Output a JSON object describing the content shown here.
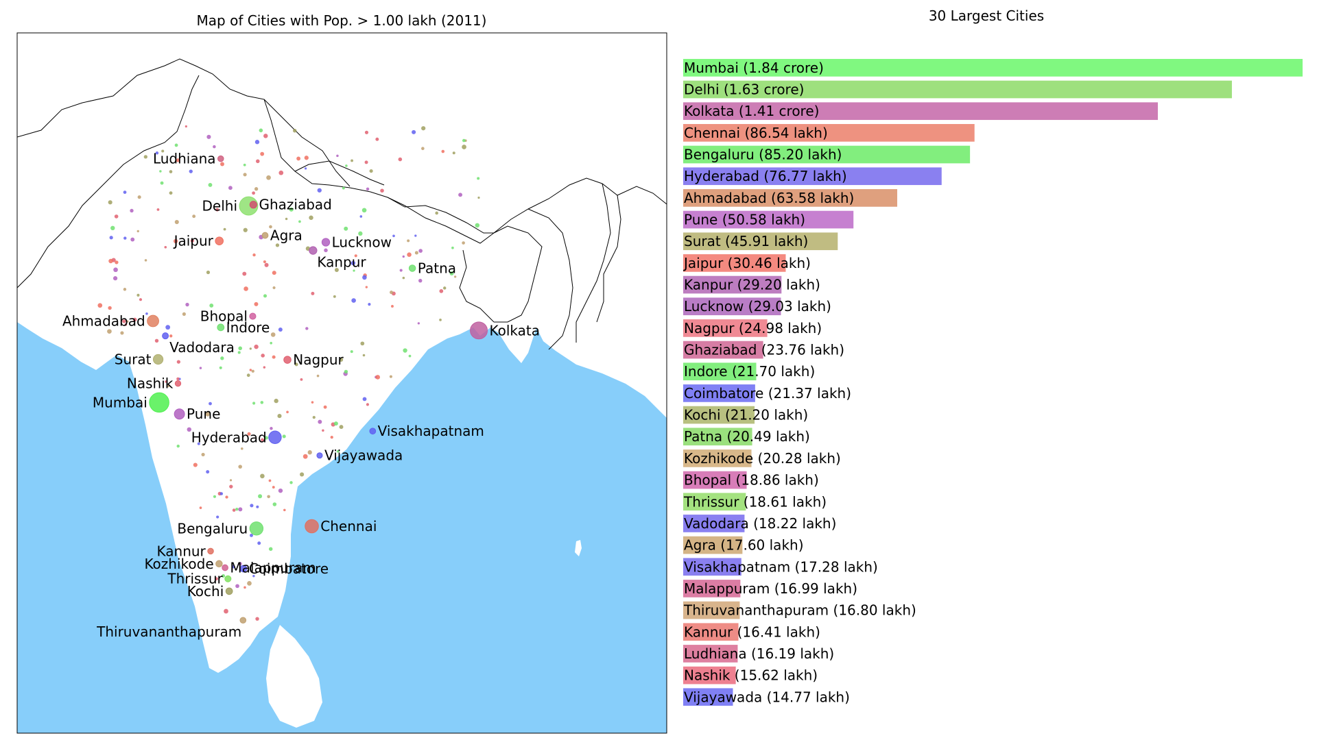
{
  "map_panel": {
    "title": "Map of Cities with Pop. > 1.00 lakh (2011)"
  },
  "bars_panel": {
    "title": "30 Largest Cities"
  },
  "colors": {
    "sea": "#87cefa",
    "land": "#ffffff",
    "border": "#000000"
  },
  "chart_data": [
    {
      "type": "scatter",
      "title": "Map of Cities with Pop. > 1.00 lakh (2011)",
      "xlabel": "",
      "ylabel": "",
      "grid": false,
      "series": [
        {
          "points": [
            {
              "label": "Mumbai",
              "lon": 72.88,
              "lat": 19.08,
              "color": "#50f050"
            },
            {
              "label": "Delhi",
              "lon": 77.21,
              "lat": 28.61,
              "color": "#8ee070"
            },
            {
              "label": "Ghaziabad",
              "lon": 77.44,
              "lat": 28.67,
              "color": "#d05070"
            },
            {
              "label": "Kolkata",
              "lon": 88.36,
              "lat": 22.57,
              "color": "#c060a0"
            },
            {
              "label": "Chennai",
              "lon": 80.27,
              "lat": 13.08,
              "color": "#e07060"
            },
            {
              "label": "Bengaluru",
              "lon": 77.59,
              "lat": 12.97,
              "color": "#70e070"
            },
            {
              "label": "Hyderabad",
              "lon": 78.49,
              "lat": 17.39,
              "color": "#6060f0"
            },
            {
              "label": "Ahmadabad",
              "lon": 72.58,
              "lat": 23.03,
              "color": "#e08060"
            },
            {
              "label": "Pune",
              "lon": 73.86,
              "lat": 18.52,
              "color": "#b060c0"
            },
            {
              "label": "Surat",
              "lon": 72.83,
              "lat": 21.17,
              "color": "#b0b070"
            },
            {
              "label": "Jaipur",
              "lon": 75.79,
              "lat": 26.91,
              "color": "#f07060"
            },
            {
              "label": "Kanpur",
              "lon": 80.33,
              "lat": 26.45,
              "color": "#b060b0"
            },
            {
              "label": "Lucknow",
              "lon": 80.95,
              "lat": 26.85,
              "color": "#b060c0"
            },
            {
              "label": "Nagpur",
              "lon": 79.09,
              "lat": 21.15,
              "color": "#e06070"
            },
            {
              "label": "Indore",
              "lon": 75.86,
              "lat": 22.72,
              "color": "#70e070"
            },
            {
              "label": "Coimbatore",
              "lon": 76.96,
              "lat": 11.02,
              "color": "#6060f0"
            },
            {
              "label": "Kochi",
              "lon": 76.27,
              "lat": 9.93,
              "color": "#a0a060"
            },
            {
              "label": "Patna",
              "lon": 85.14,
              "lat": 25.59,
              "color": "#70e070"
            },
            {
              "label": "Kozhikode",
              "lon": 75.78,
              "lat": 11.26,
              "color": "#c0a070"
            },
            {
              "label": "Bhopal",
              "lon": 77.41,
              "lat": 23.26,
              "color": "#d060a0"
            },
            {
              "label": "Thrissur",
              "lon": 76.21,
              "lat": 10.53,
              "color": "#80e060"
            },
            {
              "label": "Vadodara",
              "lon": 73.18,
              "lat": 22.31,
              "color": "#6060f0"
            },
            {
              "label": "Agra",
              "lon": 78.01,
              "lat": 27.18,
              "color": "#c0a070"
            },
            {
              "label": "Visakhapatnam",
              "lon": 83.22,
              "lat": 17.69,
              "color": "#6060f0"
            },
            {
              "label": "Malappuram",
              "lon": 76.07,
              "lat": 11.07,
              "color": "#d06090"
            },
            {
              "label": "Thiruvananthapuram",
              "lon": 76.94,
              "lat": 8.52,
              "color": "#c0a070"
            },
            {
              "label": "Kannur",
              "lon": 75.37,
              "lat": 11.87,
              "color": "#e07060"
            },
            {
              "label": "Ludhiana",
              "lon": 75.86,
              "lat": 30.9,
              "color": "#d06080"
            },
            {
              "label": "Nashik",
              "lon": 73.79,
              "lat": 20.0,
              "color": "#e06070"
            },
            {
              "label": "Vijayawada",
              "lon": 80.65,
              "lat": 16.51,
              "color": "#6060f0"
            }
          ]
        }
      ]
    },
    {
      "type": "bar",
      "orientation": "horizontal",
      "title": "30 Largest Cities",
      "xlabel": "",
      "ylabel": "",
      "grid": false,
      "unit": "lakh",
      "categories": [
        "Mumbai (1.84 crore)",
        "Delhi (1.63 crore)",
        "Kolkata (1.41 crore)",
        "Chennai (86.54 lakh)",
        "Bengaluru (85.20 lakh)",
        "Hyderabad (76.77 lakh)",
        "Ahmadabad (63.58 lakh)",
        "Pune (50.58 lakh)",
        "Surat (45.91 lakh)",
        "Jaipur (30.46 lakh)",
        "Kanpur (29.20 lakh)",
        "Lucknow (29.03 lakh)",
        "Nagpur (24.98 lakh)",
        "Ghaziabad (23.76 lakh)",
        "Indore (21.70 lakh)",
        "Coimbatore (21.37 lakh)",
        "Kochi (21.20 lakh)",
        "Patna (20.49 lakh)",
        "Kozhikode (20.28 lakh)",
        "Bhopal (18.86 lakh)",
        "Thrissur (18.61 lakh)",
        "Vadodara (18.22 lakh)",
        "Agra (17.60 lakh)",
        "Visakhapatnam (17.28 lakh)",
        "Malappuram (16.99 lakh)",
        "Thiruvananthapuram (16.80 lakh)",
        "Kannur (16.41 lakh)",
        "Ludhiana (16.19 lakh)",
        "Nashik (15.62 lakh)",
        "Vijayawada (14.77 lakh)"
      ],
      "values": [
        184.0,
        163.0,
        141.0,
        86.54,
        85.2,
        76.77,
        63.58,
        50.58,
        45.91,
        30.46,
        29.2,
        29.03,
        24.98,
        23.76,
        21.7,
        21.37,
        21.2,
        20.49,
        20.28,
        18.86,
        18.61,
        18.22,
        17.6,
        17.28,
        16.99,
        16.8,
        16.41,
        16.19,
        15.62,
        14.77
      ],
      "colors": [
        "#80f880",
        "#9ee07e",
        "#cd7db5",
        "#ee9280",
        "#82ee7e",
        "#8a80f0",
        "#dfa07e",
        "#c680d0",
        "#c0bc82",
        "#f48a80",
        "#bd7dc0",
        "#b97dc6",
        "#f08a94",
        "#d67da4",
        "#82ee7e",
        "#8080f4",
        "#b8c080",
        "#9ae07e",
        "#d8b88a",
        "#d87db8",
        "#a4e280",
        "#8a80f0",
        "#d4b486",
        "#8a80f0",
        "#dc7da4",
        "#d8b48c",
        "#ee8c86",
        "#de80a0",
        "#ee8090",
        "#8080f4"
      ]
    }
  ]
}
